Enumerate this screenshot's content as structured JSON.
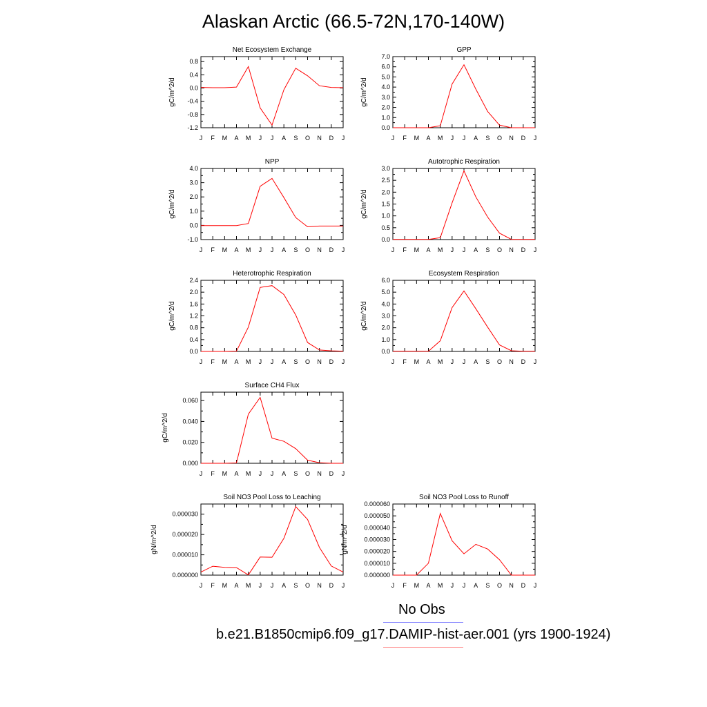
{
  "title": "Alaskan Arctic (66.5-72N,170-140W)",
  "legend": {
    "obs_label": "No Obs",
    "obs_color": "#8c8cff",
    "model_label": "b.e21.B1850cmip6.f09_g17.DAMIP-hist-aer.001 (yrs 1900-1924)",
    "model_color": "#ff8c8c"
  },
  "chart_data": [
    {
      "type": "line",
      "title": "Net Ecosystem Exchange",
      "ylabel": "gC/m^2/d",
      "categories": [
        "J",
        "F",
        "M",
        "A",
        "M",
        "J",
        "J",
        "A",
        "S",
        "O",
        "N",
        "D",
        "J"
      ],
      "yticks": [
        "0.8",
        "0.4",
        "0.0",
        "-0.4",
        "-0.8",
        "-1.2"
      ],
      "ylim": [
        -1.2,
        0.95
      ],
      "series": [
        {
          "color": "#ff0000",
          "values": [
            0.02,
            0.01,
            0.01,
            0.03,
            0.65,
            -0.6,
            -1.12,
            -0.05,
            0.6,
            0.37,
            0.07,
            0.02,
            0.01
          ]
        }
      ]
    },
    {
      "type": "line",
      "title": "GPP",
      "ylabel": "gC/m^2/d",
      "categories": [
        "J",
        "F",
        "M",
        "A",
        "M",
        "J",
        "J",
        "A",
        "S",
        "O",
        "N",
        "D",
        "J"
      ],
      "yticks": [
        "7.0",
        "6.0",
        "5.0",
        "4.0",
        "3.0",
        "2.0",
        "1.0",
        "0.0"
      ],
      "ylim": [
        0,
        7
      ],
      "series": [
        {
          "color": "#ff0000",
          "values": [
            0,
            0,
            0,
            0,
            0.2,
            4.3,
            6.2,
            3.8,
            1.6,
            0.25,
            0,
            0,
            0
          ]
        }
      ]
    },
    {
      "type": "line",
      "title": "NPP",
      "ylabel": "gC/m^2/d",
      "categories": [
        "J",
        "F",
        "M",
        "A",
        "M",
        "J",
        "J",
        "A",
        "S",
        "O",
        "N",
        "D",
        "J"
      ],
      "yticks": [
        "4.0",
        "3.0",
        "2.0",
        "1.0",
        "0.0",
        "-1.0"
      ],
      "ylim": [
        -1,
        4
      ],
      "series": [
        {
          "color": "#ff0000",
          "values": [
            -0.02,
            -0.02,
            -0.02,
            -0.02,
            0.13,
            2.75,
            3.3,
            1.95,
            0.55,
            -0.1,
            -0.05,
            -0.05,
            -0.05
          ]
        }
      ]
    },
    {
      "type": "line",
      "title": "Autotrophic Respiration",
      "ylabel": "gC/m^2/d",
      "categories": [
        "J",
        "F",
        "M",
        "A",
        "M",
        "J",
        "J",
        "A",
        "S",
        "O",
        "N",
        "D",
        "J"
      ],
      "yticks": [
        "3.0",
        "2.5",
        "2.0",
        "1.5",
        "1.0",
        "0.5",
        "0.0"
      ],
      "ylim": [
        0,
        3
      ],
      "series": [
        {
          "color": "#ff0000",
          "values": [
            0.01,
            0.01,
            0.01,
            0.01,
            0.08,
            1.55,
            2.9,
            1.8,
            0.95,
            0.27,
            0.01,
            0.01,
            0.01
          ]
        }
      ]
    },
    {
      "type": "line",
      "title": "Heterotrophic Respiration",
      "ylabel": "gC/m^2/d",
      "categories": [
        "J",
        "F",
        "M",
        "A",
        "M",
        "J",
        "J",
        "A",
        "S",
        "O",
        "N",
        "D",
        "J"
      ],
      "yticks": [
        "2.4",
        "2.0",
        "1.6",
        "1.2",
        "0.8",
        "0.4",
        "0.0"
      ],
      "ylim": [
        0,
        2.4
      ],
      "series": [
        {
          "color": "#ff0000",
          "values": [
            0,
            0,
            0,
            0.01,
            0.82,
            2.16,
            2.22,
            1.92,
            1.23,
            0.3,
            0.05,
            0.02,
            0.01
          ]
        }
      ]
    },
    {
      "type": "line",
      "title": "Ecosystem Respiration",
      "ylabel": "gC/m^2/d",
      "categories": [
        "J",
        "F",
        "M",
        "A",
        "M",
        "J",
        "J",
        "A",
        "S",
        "O",
        "N",
        "D",
        "J"
      ],
      "yticks": [
        "6.0",
        "5.0",
        "4.0",
        "3.0",
        "2.0",
        "1.0",
        "0.0"
      ],
      "ylim": [
        0,
        6
      ],
      "series": [
        {
          "color": "#ff0000",
          "values": [
            0.01,
            0.01,
            0.01,
            0.02,
            0.9,
            3.7,
            5.1,
            3.6,
            2.05,
            0.55,
            0.06,
            0.02,
            0.01
          ]
        }
      ]
    },
    {
      "type": "line",
      "title": "Surface CH4 Flux",
      "ylabel": "gC/m^2/d",
      "categories": [
        "J",
        "F",
        "M",
        "A",
        "M",
        "J",
        "J",
        "A",
        "S",
        "O",
        "N",
        "D",
        "J"
      ],
      "yticks": [
        "0.060",
        "0.040",
        "0.020",
        "0.000"
      ],
      "ylim": [
        0,
        0.068
      ],
      "series": [
        {
          "color": "#ff0000",
          "values": [
            0,
            0,
            0,
            0.0003,
            0.047,
            0.063,
            0.024,
            0.021,
            0.014,
            0.003,
            0.0005,
            0,
            0
          ]
        }
      ]
    },
    {
      "type": "line",
      "title": "Soil NO3 Pool Loss to Leaching",
      "ylabel": "gN/m^2/d",
      "categories": [
        "J",
        "F",
        "M",
        "A",
        "M",
        "J",
        "J",
        "A",
        "S",
        "O",
        "N",
        "D",
        "J"
      ],
      "yticks": [
        "0.000030",
        "0.000020",
        "0.000010",
        "0.000000"
      ],
      "ylim": [
        0,
        3.5e-05
      ],
      "series": [
        {
          "color": "#ff0000",
          "values": [
            1.5e-06,
            4.4e-06,
            3.8e-06,
            3.7e-06,
            1e-07,
            8.9e-06,
            8.8e-06,
            1.81e-05,
            3.37e-05,
            2.74e-05,
            1.36e-05,
            4.5e-06,
            1.5e-06
          ]
        }
      ]
    },
    {
      "type": "line",
      "title": "Soil NO3 Pool Loss to Runoff",
      "ylabel": "gN/m^2/d",
      "categories": [
        "J",
        "F",
        "M",
        "A",
        "M",
        "J",
        "J",
        "A",
        "S",
        "O",
        "N",
        "D",
        "J"
      ],
      "yticks": [
        "0.000060",
        "0.000050",
        "0.000040",
        "0.000030",
        "0.000020",
        "0.000010",
        "0.000000"
      ],
      "ylim": [
        0,
        6e-05
      ],
      "series": [
        {
          "color": "#ff0000",
          "values": [
            0,
            0,
            0,
            1e-05,
            5.2e-05,
            2.9e-05,
            1.8e-05,
            2.6e-05,
            2.2e-05,
            1.3e-05,
            0,
            0,
            0
          ]
        }
      ]
    }
  ]
}
